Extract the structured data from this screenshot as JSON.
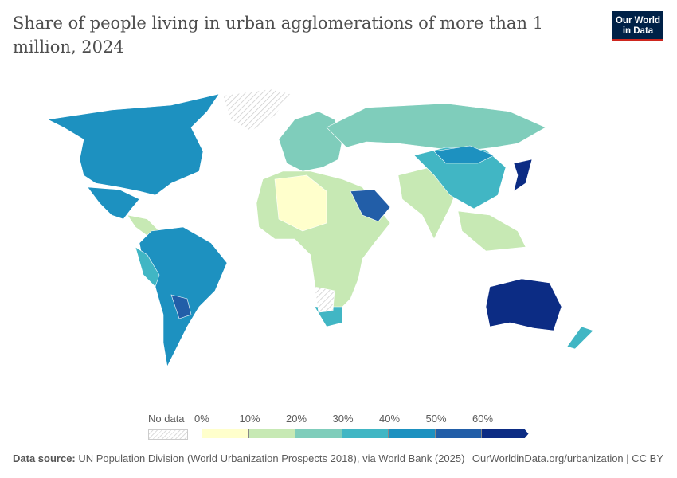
{
  "title": "Share of people living in urban agglomerations of more than 1 million, 2024",
  "logo": {
    "line1": "Our World",
    "line2": "in Data"
  },
  "legend": {
    "no_data_label": "No data",
    "ticks": [
      "0%",
      "10%",
      "20%",
      "30%",
      "40%",
      "50%",
      "60%"
    ],
    "colors": [
      "#ffffcc",
      "#c7e9b4",
      "#7fcdbb",
      "#41b6c4",
      "#1d91c0",
      "#225ea8",
      "#0c2c84"
    ],
    "no_data_color": "#e0e0e0"
  },
  "footer": {
    "source_label": "Data source:",
    "source_text": "UN Population Division (World Urbanization Prospects 2018), via World Bank (2025)",
    "right": "OurWorldinData.org/urbanization | CC BY"
  }
}
